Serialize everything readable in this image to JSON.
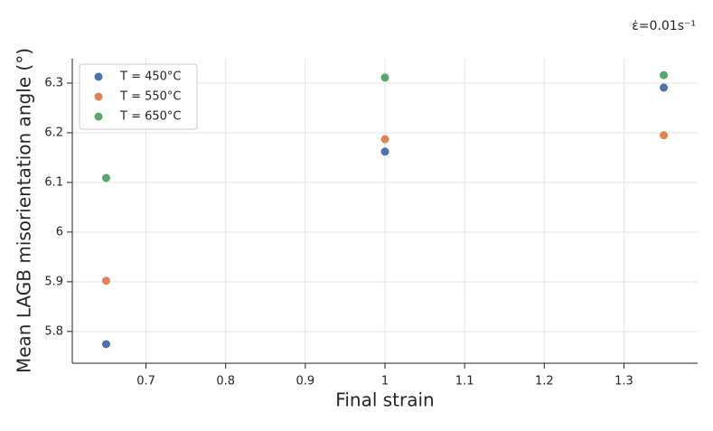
{
  "chart_data": {
    "type": "scatter",
    "annotation": "ε̇=0.01s⁻¹",
    "xlabel": "Final strain",
    "ylabel": "Mean LAGB misorientation angle (°)",
    "xlim": [
      0.6075,
      1.3925
    ],
    "ylim": [
      5.736,
      6.349
    ],
    "xticks": [
      0.7,
      0.8,
      0.9,
      1.0,
      1.1,
      1.2,
      1.3
    ],
    "yticks": [
      5.8,
      5.9,
      6.0,
      6.1,
      6.2,
      6.3
    ],
    "grid": true,
    "legend": "upper left",
    "series": [
      {
        "name": "T = 450°C",
        "color": "#4c72b0",
        "x": [
          0.65,
          1.0,
          1.35
        ],
        "values": [
          5.7745,
          6.162,
          6.291
        ]
      },
      {
        "name": "T = 550°C",
        "color": "#dd8452",
        "x": [
          0.65,
          1.0,
          1.35
        ],
        "values": [
          5.902,
          6.187,
          6.195
        ]
      },
      {
        "name": "T = 650°C",
        "color": "#55a868",
        "x": [
          0.65,
          1.0,
          1.35
        ],
        "values": [
          6.109,
          6.311,
          6.316
        ]
      }
    ]
  }
}
